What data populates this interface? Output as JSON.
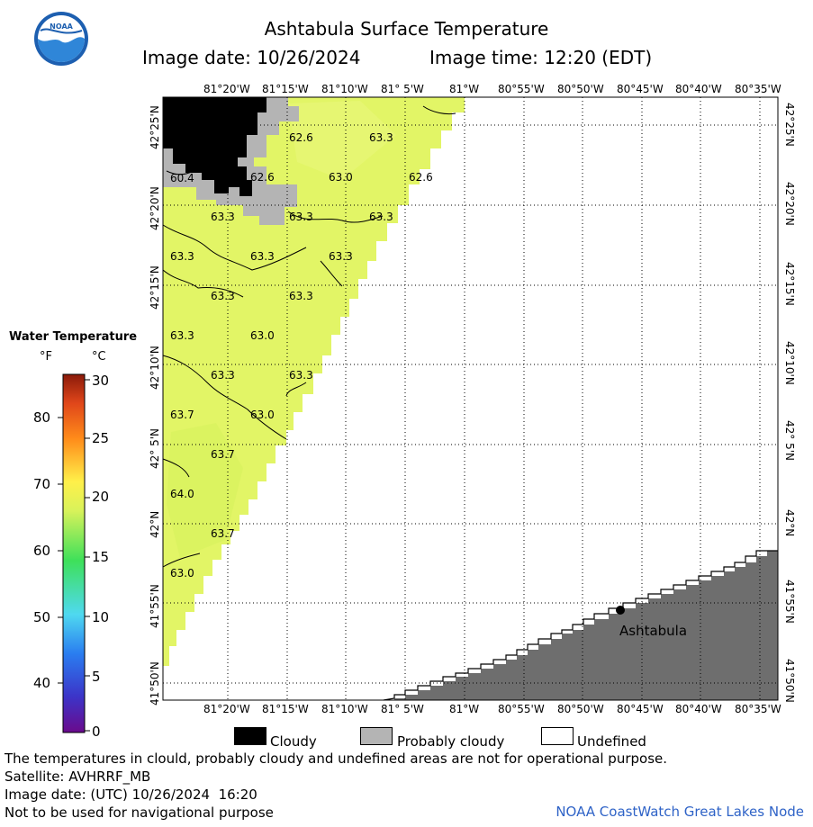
{
  "header": {
    "title": "Ashtabula Surface Temperature",
    "image_date": "Image date: 10/26/2024",
    "image_time": "Image time: 12:20 (EDT)",
    "logo_text": "NOAA"
  },
  "map": {
    "top_lon_labels": [
      "81°20'W",
      "81°15'W",
      "81°10'W",
      "81° 5'W",
      "81°W",
      "80°55'W",
      "80°50'W",
      "80°45'W",
      "80°40'W",
      "80°35'W"
    ],
    "bottom_lon_labels": [
      "81°20'W",
      "81°15'W",
      "81°10'W",
      "81° 5'W",
      "81°W",
      "80°55'W",
      "80°50'W",
      "80°45'W",
      "80°40'W",
      "80°35'W"
    ],
    "lat_labels": [
      "42°25'N",
      "42°20'N",
      "42°15'N",
      "42°10'N",
      "42° 5'N",
      "42°N",
      "41°55'N",
      "41°50'N"
    ],
    "city": "Ashtabula",
    "temp_labels": [
      "62.6",
      "63.3",
      "60.4",
      "62.6",
      "63.0",
      "62.6",
      "63.3",
      "63.3",
      "63.3",
      "63.3",
      "63.3",
      "63.3",
      "63.3",
      "63.3",
      "63.3",
      "63.0",
      "63.3",
      "63.3",
      "63.7",
      "63.0",
      "63.7",
      "64.0",
      "63.7",
      "63.0"
    ],
    "colors": {
      "land": "#6e6e6e",
      "water": "#e2f566",
      "cloud": "#000000",
      "probably_cloudy": "#b4b4b4"
    }
  },
  "legend": {
    "title": "Water Temperature",
    "unit_f": "°F",
    "unit_c": "°C",
    "f_ticks": [
      "80",
      "70",
      "60",
      "50",
      "40"
    ],
    "c_ticks": [
      "30",
      "25",
      "20",
      "15",
      "10",
      "5",
      "0"
    ]
  },
  "key": {
    "cloudy": "Cloudy",
    "probably_cloudy": "Probably cloudy",
    "undefined": "Undefined"
  },
  "footer": {
    "line1": "The temperatures in clould, probably cloudy and undefined areas are not for operational purpose.",
    "line2": "Satellite: AVHRRF_MB",
    "line3": "Image date: (UTC) 10/26/2024  16:20",
    "line4": "Not to be used for navigational purpose",
    "credit": "NOAA CoastWatch Great Lakes Node"
  }
}
